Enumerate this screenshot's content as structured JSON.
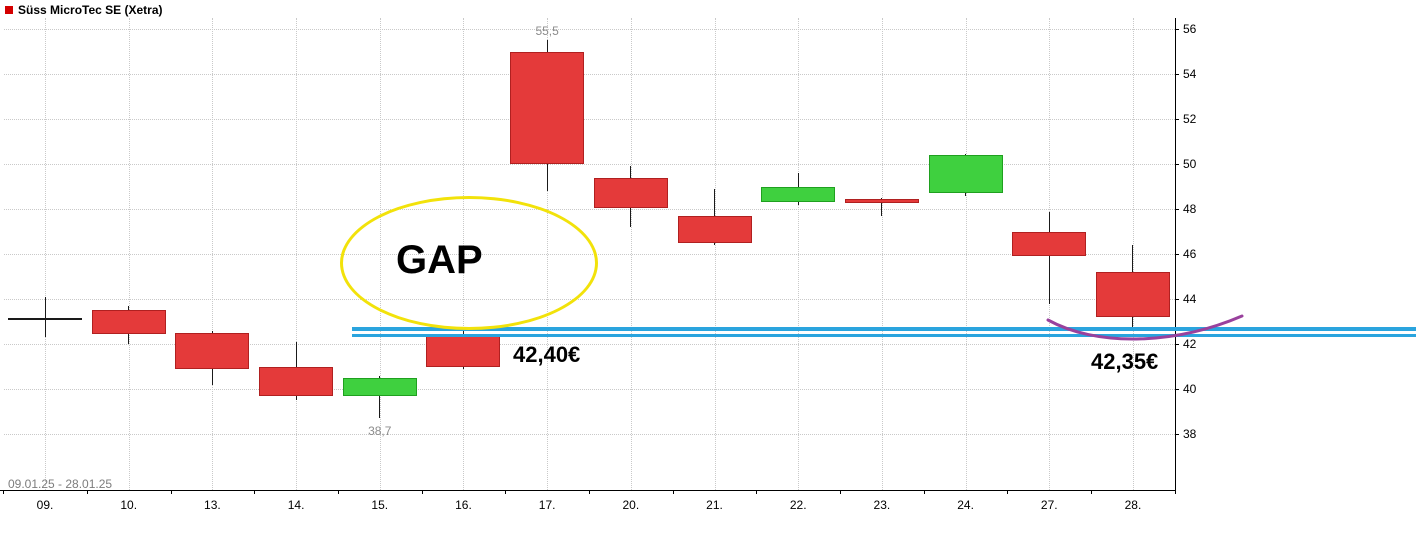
{
  "legend": {
    "title": "Süss MicroTec SE (Xetra)"
  },
  "footer": {
    "date_range": "09.01.25 - 28.01.25"
  },
  "colors": {
    "legend_marker": "#d40000",
    "candle_up": "#3fd03f",
    "candle_up_border": "#1fa01f",
    "candle_down": "#e43a3a",
    "candle_down_border": "#b02020",
    "wick": "#1a1a1a",
    "grid": "#c9c9c9",
    "axis": "#000000",
    "minmax_label": "#8c8c8c"
  },
  "annotations": {
    "gap_label": "GAP",
    "price_left": "42,40€",
    "price_right": "42,35€",
    "high_label": "55,5",
    "high_candle_index": 6,
    "low_label": "38,7",
    "low_candle_index": 4,
    "ellipse_color": "#f2e20a",
    "hline_color": "#2aa4de",
    "hline_price": 42.4,
    "curve_color": "#99419d"
  },
  "chart_data": {
    "type": "candlestick",
    "title": "Süss MicroTec SE (Xetra)",
    "xlabel": "",
    "ylabel": "",
    "grid": true,
    "legend_position": "top-left",
    "x_labels": [
      "09.",
      "10.",
      "13.",
      "14.",
      "15.",
      "16.",
      "17.",
      "20.",
      "21.",
      "22.",
      "23.",
      "24.",
      "27.",
      "28."
    ],
    "y_ticks": [
      38,
      40,
      42,
      44,
      46,
      48,
      50,
      52,
      54,
      56
    ],
    "ylim": [
      37.5,
      56.5
    ],
    "candles": [
      {
        "date": "09.",
        "open": 43.1,
        "high": 44.1,
        "low": 42.3,
        "close": 43.1,
        "type": "doji"
      },
      {
        "date": "10.",
        "open": 43.5,
        "high": 43.7,
        "low": 42.0,
        "close": 42.45
      },
      {
        "date": "13.",
        "open": 42.5,
        "high": 42.6,
        "low": 40.2,
        "close": 40.9
      },
      {
        "date": "14.",
        "open": 41.0,
        "high": 42.1,
        "low": 39.5,
        "close": 39.7
      },
      {
        "date": "15.",
        "open": 39.7,
        "high": 40.6,
        "low": 38.7,
        "close": 40.5
      },
      {
        "date": "16.",
        "open": 42.4,
        "high": 42.6,
        "low": 40.9,
        "close": 41.0
      },
      {
        "date": "17.",
        "open": 55.0,
        "high": 55.5,
        "low": 48.8,
        "close": 50.0
      },
      {
        "date": "20.",
        "open": 49.4,
        "high": 49.9,
        "low": 47.2,
        "close": 48.05
      },
      {
        "date": "21.",
        "open": 47.7,
        "high": 48.9,
        "low": 46.4,
        "close": 46.5
      },
      {
        "date": "22.",
        "open": 48.3,
        "high": 49.6,
        "low": 48.2,
        "close": 49.0
      },
      {
        "date": "23.",
        "open": 48.45,
        "high": 48.5,
        "low": 47.7,
        "close": 48.25
      },
      {
        "date": "24.",
        "open": 48.7,
        "high": 50.45,
        "low": 48.6,
        "close": 50.4
      },
      {
        "date": "27.",
        "open": 47.0,
        "high": 47.85,
        "low": 43.8,
        "close": 45.9
      },
      {
        "date": "28.",
        "open": 45.2,
        "high": 46.4,
        "low": 42.7,
        "close": 43.2
      }
    ]
  }
}
